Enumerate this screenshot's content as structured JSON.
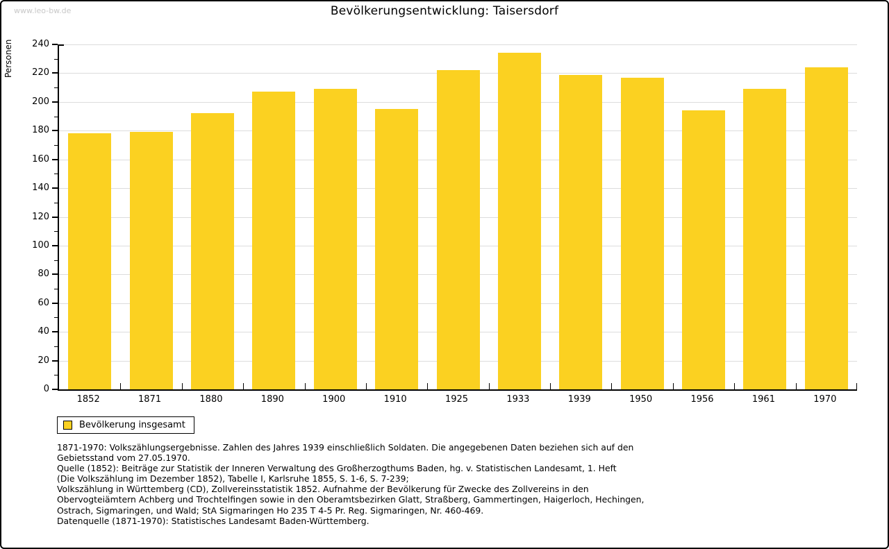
{
  "watermark": "www.leo-bw.de",
  "legend": {
    "label": "Bevölkerung insgesamt"
  },
  "colors": {
    "bar": "#FBD121",
    "grid": "#DCDCDC",
    "axis": "#000000",
    "watermark": "#C8C8C8",
    "background": "#FFFFFF"
  },
  "chart_data": {
    "type": "bar",
    "title": "Bevölkerungsentwicklung: Taisersdorf",
    "ylabel": "Personen",
    "xlabel": "",
    "categories": [
      "1852",
      "1871",
      "1880",
      "1890",
      "1900",
      "1910",
      "1925",
      "1933",
      "1939",
      "1950",
      "1956",
      "1961",
      "1970"
    ],
    "values": [
      178,
      179,
      192,
      207,
      209,
      195,
      222,
      234,
      219,
      217,
      194,
      209,
      224
    ],
    "series_name": "Bevölkerung insgesamt",
    "ylim": [
      0,
      240
    ],
    "ytick_step": 20,
    "yminor_step": 10,
    "grid": true,
    "legend_position": "bottom-left",
    "bar_color": "#FBD121"
  },
  "footer": {
    "lines": [
      "1871-1970: Volkszählungsergebnisse. Zahlen des Jahres 1939 einschließlich Soldaten. Die angegebenen Daten beziehen sich auf den",
      "Gebietsstand vom 27.05.1970.",
      "Quelle (1852): Beiträge zur Statistik der Inneren Verwaltung des Großherzogthums Baden, hg. v. Statistischen Landesamt, 1. Heft",
      "(Die Volkszählung im Dezember 1852), Tabelle I, Karlsruhe 1855, S. 1-6, S. 7-239;",
      "Volkszählung in Württemberg (CD), Zollvereinsstatistik 1852. Aufnahme der Bevölkerung für Zwecke des Zollvereins in den",
      "Obervogteiämtern Achberg und Trochtelfingen sowie in den Oberamtsbezirken Glatt, Straßberg, Gammertingen, Haigerloch, Hechingen,",
      "Ostrach, Sigmaringen, und Wald; StA Sigmaringen Ho 235 T 4-5 Pr. Reg. Sigmaringen, Nr. 460-469."
    ],
    "datasource": "Datenquelle (1871-1970): Statistisches Landesamt Baden-Württemberg."
  }
}
